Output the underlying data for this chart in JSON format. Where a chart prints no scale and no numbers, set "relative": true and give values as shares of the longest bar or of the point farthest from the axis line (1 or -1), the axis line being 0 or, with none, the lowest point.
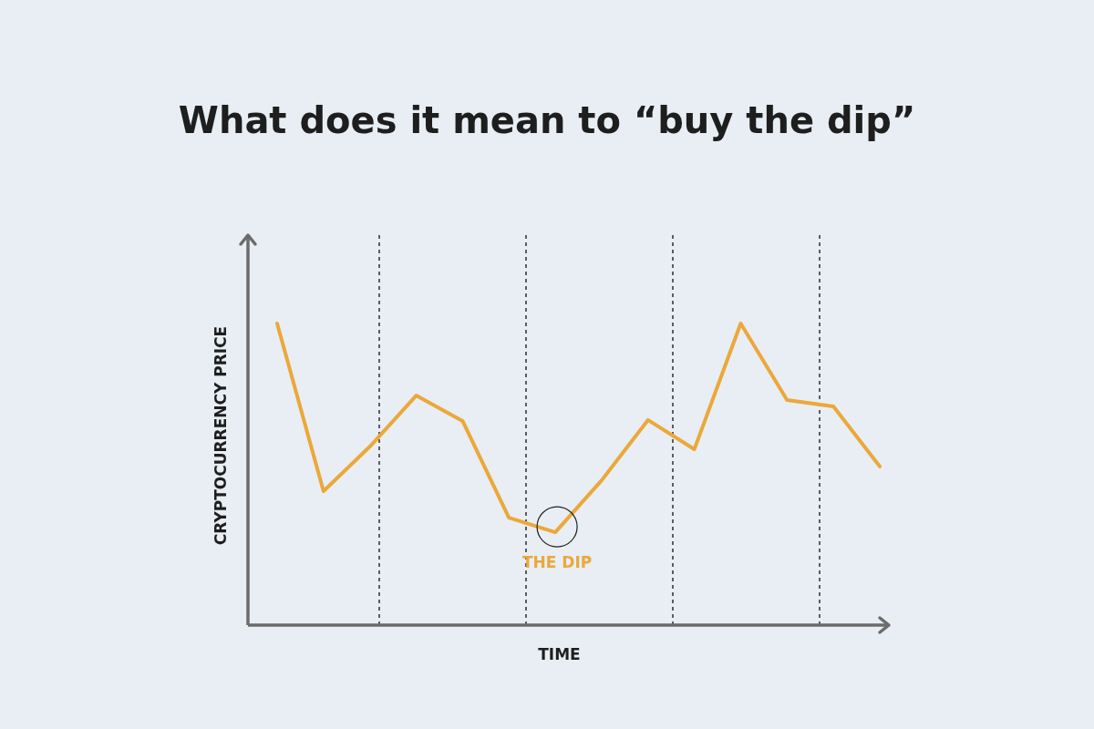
{
  "chart_data": {
    "type": "line",
    "title": "What does it mean to “buy the dip”",
    "xlabel": "TIME",
    "ylabel": "CRYPTOCURRENCY PRICE",
    "relative": true,
    "marker": "none",
    "line_style": "solid",
    "categories": [
      null,
      null,
      null,
      null,
      null,
      null,
      null,
      null,
      null,
      null,
      null,
      null,
      null,
      null
    ],
    "series": [
      {
        "color": "#eba83a",
        "values": [
          1.0,
          0.444,
          0.592,
          0.761,
          0.677,
          0.356,
          0.308,
          0.48,
          0.68,
          0.583,
          1.0,
          0.746,
          0.725,
          0.526
        ]
      }
    ],
    "annotations": [
      "THE DIP"
    ]
  }
}
